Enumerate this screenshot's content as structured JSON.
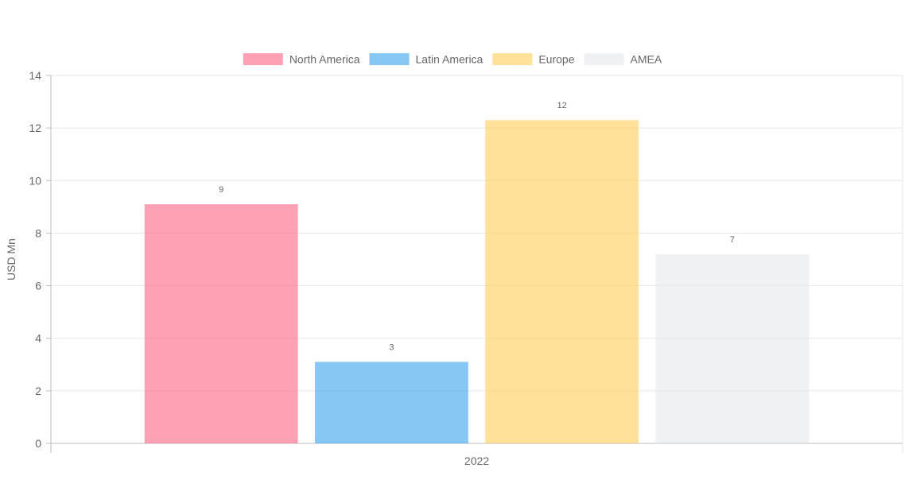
{
  "chart_data": {
    "type": "bar",
    "categories": [
      "2022"
    ],
    "series": [
      {
        "name": "North America",
        "values": [
          9.1
        ],
        "data_label": "9",
        "color": "#ff6384",
        "opacity": 0.6
      },
      {
        "name": "Latin America",
        "values": [
          3.1
        ],
        "data_label": "3",
        "color": "#36a2eb",
        "opacity": 0.6
      },
      {
        "name": "Europe",
        "values": [
          12.3
        ],
        "data_label": "12",
        "color": "#ffcd56",
        "opacity": 0.6
      },
      {
        "name": "AMEA",
        "values": [
          7.2
        ],
        "data_label": "7",
        "color": "#e5e7eb",
        "opacity": 0.6
      }
    ],
    "ylabel": "USD Mn",
    "xlabel": "",
    "ylim": [
      0,
      14
    ],
    "yticks": [
      "0",
      "2",
      "4",
      "6",
      "8",
      "10",
      "12",
      "14"
    ],
    "grid": true,
    "legend_position": "top"
  }
}
